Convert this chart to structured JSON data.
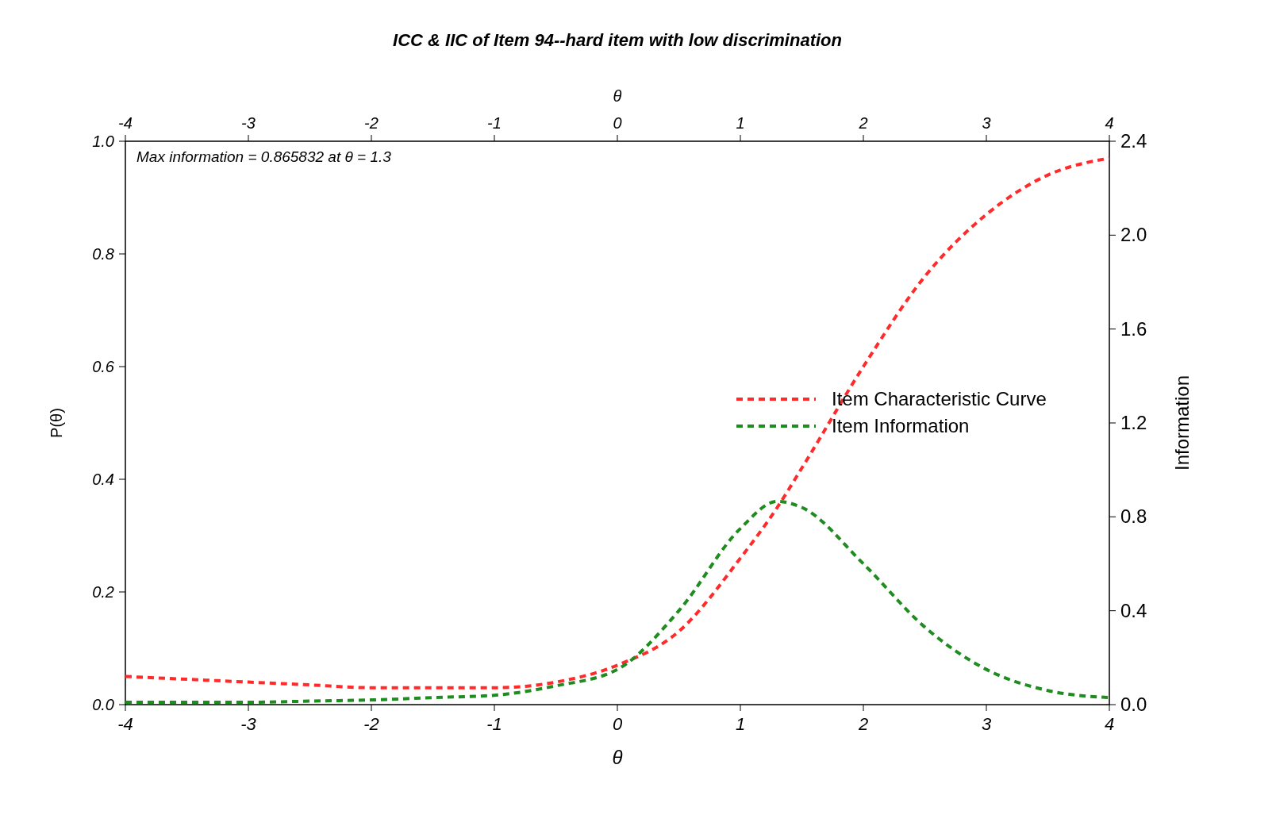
{
  "chart_data": {
    "type": "line",
    "title": "ICC & IIC of Item 94--hard item with low discrimination",
    "xlabel": "θ",
    "x2label": "θ",
    "ylabel": "P(θ)",
    "y2label": "Information",
    "xlim": [
      -4,
      4
    ],
    "xticks": [
      -4,
      -3,
      -2,
      -1,
      0,
      1,
      2,
      3,
      4
    ],
    "x2lim": [
      -4,
      4
    ],
    "x2ticks": [
      -4,
      -3,
      -2,
      -1,
      0,
      1,
      2,
      3,
      4
    ],
    "ylim": [
      0,
      1
    ],
    "yticks": [
      {
        "value": 0,
        "label": "0.0"
      },
      0.2,
      0.4,
      0.6,
      0.8,
      {
        "value": 1,
        "label": "1.0"
      }
    ],
    "y2lim": [
      0,
      2.4
    ],
    "y2ticks": [
      {
        "value": 0,
        "label": "0.0"
      },
      0.4,
      0.8,
      1.2,
      1.6,
      {
        "value": 2,
        "label": "2.0"
      },
      2.4
    ],
    "x": [
      -4,
      -3.5,
      -3,
      -2.5,
      -2,
      -1.5,
      -1,
      -0.5,
      0,
      0.5,
      1,
      1.3,
      1.5,
      2,
      2.5,
      3,
      3.5,
      4
    ],
    "series": [
      {
        "name": "Item Characteristic Curve",
        "color": "#ff2a2a",
        "values": [
          0.05,
          0.045,
          0.04,
          0.035,
          0.03,
          0.03,
          0.03,
          0.04,
          0.07,
          0.13,
          0.26,
          0.35,
          0.42,
          0.6,
          0.76,
          0.87,
          0.94,
          0.97
        ]
      },
      {
        "name": "Item Information",
        "color": "#1e8c1e",
        "axis": "y2",
        "values": [
          0.01,
          0.01,
          0.01,
          0.015,
          0.02,
          0.03,
          0.04,
          0.08,
          0.15,
          0.4,
          0.75,
          0.866,
          0.84,
          0.6,
          0.33,
          0.15,
          0.06,
          0.03
        ]
      }
    ],
    "annotations": [
      "Max information = 0.865832 at θ = 1.3"
    ],
    "line_style": "dashed",
    "legend": "right",
    "grid": false
  }
}
